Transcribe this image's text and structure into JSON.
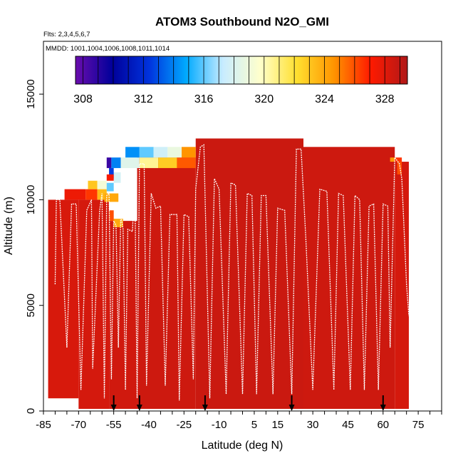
{
  "chart_data": {
    "type": "heatmap",
    "title": "ATOM3 Southbound N2O_GMI",
    "flights_label": "Flts: 2,3,4,5,6,7",
    "dates_label": "MMDD: 1001,1004,1006,1008,1011,1014",
    "xlabel": "Latitude (deg N)",
    "ylabel": "Altitude (m)",
    "xlim": [
      -85,
      85
    ],
    "ylim": [
      0,
      17500
    ],
    "x_ticks": [
      "-85",
      "-70",
      "-55",
      "-40",
      "-25",
      "-10",
      "5",
      "15",
      "30",
      "45",
      "60",
      "75"
    ],
    "y_ticks": [
      "0",
      "5000",
      "10000",
      "15000"
    ],
    "colorbar": {
      "min": 307.5,
      "max": 329.5,
      "ticks": [
        "308",
        "312",
        "316",
        "320",
        "324",
        "328"
      ],
      "colors": [
        "#6a0dad",
        "#00009a",
        "#0033dd",
        "#00aaff",
        "#c8ecff",
        "#ffffcc",
        "#ffe030",
        "#ff9500",
        "#ff1a00",
        "#b01818"
      ]
    },
    "grid": false,
    "legend": "colorbar-top-inside",
    "curtain_cells": [
      {
        "x0": -83,
        "x1": -70,
        "y0": 600,
        "y1": 10000,
        "v": 328.3
      },
      {
        "x0": -70,
        "x1": -57,
        "y0": 100,
        "y1": 10000,
        "v": 328.4
      },
      {
        "x0": -57,
        "x1": -45,
        "y0": 100,
        "y1": 9000,
        "v": 328.5
      },
      {
        "x0": -45,
        "x1": -20,
        "y0": 100,
        "y1": 12000,
        "v": 328.6
      },
      {
        "x0": -20,
        "x1": 26,
        "y0": 100,
        "y1": 12900,
        "v": 328.7
      },
      {
        "x0": 26,
        "x1": 65,
        "y0": 100,
        "y1": 12500,
        "v": 328.6
      },
      {
        "x0": 65,
        "x1": 71,
        "y0": 100,
        "y1": 11800,
        "v": 328.4
      },
      {
        "x0": -76,
        "x1": -67,
        "y0": 10000,
        "y1": 10500,
        "v": 327.6
      },
      {
        "x0": -67,
        "x1": -62,
        "y0": 10000,
        "y1": 10500,
        "v": 326.5
      },
      {
        "x0": -62,
        "x1": -58,
        "y0": 10000,
        "y1": 10500,
        "v": 323.4
      },
      {
        "x0": -66,
        "x1": -62,
        "y0": 10500,
        "y1": 10900,
        "v": 323.0
      },
      {
        "x0": -62,
        "x1": -58,
        "y0": 10500,
        "y1": 10900,
        "v": 319.2
      },
      {
        "x0": -58,
        "x1": -55,
        "y0": 10400,
        "y1": 10800,
        "v": 316.0
      },
      {
        "x0": -55,
        "x1": -52,
        "y0": 10800,
        "y1": 11300,
        "v": 317.8
      },
      {
        "x0": -57,
        "x1": -55,
        "y0": 11000,
        "y1": 11500,
        "v": 312.6
      },
      {
        "x0": -58,
        "x1": -56,
        "y0": 11500,
        "y1": 12000,
        "v": 308.6
      },
      {
        "x0": -56,
        "x1": -52,
        "y0": 11500,
        "y1": 12000,
        "v": 314.0
      },
      {
        "x0": -52,
        "x1": -44,
        "y0": 11500,
        "y1": 12000,
        "v": 318.3
      },
      {
        "x0": -44,
        "x1": -36,
        "y0": 11500,
        "y1": 12000,
        "v": 320.6
      },
      {
        "x0": -36,
        "x1": -28,
        "y0": 11500,
        "y1": 12000,
        "v": 322.8
      },
      {
        "x0": -28,
        "x1": -20,
        "y0": 11500,
        "y1": 12000,
        "v": 325.8
      },
      {
        "x0": -50,
        "x1": -44,
        "y0": 12000,
        "y1": 12500,
        "v": 314.3
      },
      {
        "x0": -44,
        "x1": -38,
        "y0": 12000,
        "y1": 12500,
        "v": 316.0
      },
      {
        "x0": -38,
        "x1": -32,
        "y0": 12000,
        "y1": 12500,
        "v": 317.6
      },
      {
        "x0": -32,
        "x1": -26,
        "y0": 12000,
        "y1": 12500,
        "v": 318.8
      },
      {
        "x0": -26,
        "x1": -20,
        "y0": 12000,
        "y1": 12500,
        "v": 324.6
      },
      {
        "x0": -59,
        "x1": -53,
        "y0": 9900,
        "y1": 10300,
        "v": 324.0
      },
      {
        "x0": -55,
        "x1": -51,
        "y0": 8700,
        "y1": 9100,
        "v": 323.9
      },
      {
        "x0": -57,
        "x1": -55,
        "y0": 9000,
        "y1": 9500,
        "v": 326.0
      },
      {
        "x0": -58,
        "x1": -55,
        "y0": 10900,
        "y1": 11200,
        "v": 327.3
      },
      {
        "x0": 63,
        "x1": 65,
        "y0": 11800,
        "y1": 12000,
        "v": 324.5
      },
      {
        "x0": 65,
        "x1": 68,
        "y0": 11800,
        "y1": 12000,
        "v": 326.5
      },
      {
        "x0": 66,
        "x1": 68,
        "y0": 11200,
        "y1": 11800,
        "v": 326.0
      }
    ],
    "flight_track": {
      "color": "#ffffff",
      "points": [
        [
          -80,
          6000
        ],
        [
          -79.5,
          10000
        ],
        [
          -78,
          10000
        ],
        [
          -75,
          3000
        ],
        [
          -73,
          9800
        ],
        [
          -71,
          9800
        ],
        [
          -69,
          1000
        ],
        [
          -66.5,
          9500
        ],
        [
          -64.5,
          10000
        ],
        [
          -64,
          2000
        ],
        [
          -61,
          9500
        ],
        [
          -60,
          10300
        ],
        [
          -59,
          600
        ],
        [
          -58,
          10200
        ],
        [
          -57,
          10300
        ],
        [
          -56,
          1500
        ],
        [
          -55,
          9000
        ],
        [
          -54,
          8800
        ],
        [
          -53,
          3000
        ],
        [
          -52,
          9300
        ],
        [
          -51,
          8600
        ],
        [
          -50,
          1000
        ],
        [
          -49,
          8600
        ],
        [
          -47,
          8500
        ],
        [
          -46,
          11200
        ],
        [
          -45,
          600
        ],
        [
          -44,
          11700
        ],
        [
          -42,
          11700
        ],
        [
          -41,
          1200
        ],
        [
          -39,
          10300
        ],
        [
          -37,
          9600
        ],
        [
          -35,
          9700
        ],
        [
          -33,
          1200
        ],
        [
          -31,
          9300
        ],
        [
          -28,
          9300
        ],
        [
          -27,
          500
        ],
        [
          -25,
          9300
        ],
        [
          -23,
          9200
        ],
        [
          -21,
          1500
        ],
        [
          -20,
          10500
        ],
        [
          -18,
          12500
        ],
        [
          -16.5,
          12600
        ],
        [
          -14,
          600
        ],
        [
          -12,
          11000
        ],
        [
          -10,
          10500
        ],
        [
          -7,
          800
        ],
        [
          -5,
          10800
        ],
        [
          -3,
          10700
        ],
        [
          0,
          800
        ],
        [
          2,
          10300
        ],
        [
          4,
          10200
        ],
        [
          6,
          800
        ],
        [
          8,
          10200
        ],
        [
          10,
          10200
        ],
        [
          13,
          800
        ],
        [
          15,
          9600
        ],
        [
          18,
          9500
        ],
        [
          21,
          800
        ],
        [
          23,
          12400
        ],
        [
          25,
          12400
        ],
        [
          27,
          8200
        ],
        [
          30,
          1000
        ],
        [
          33,
          10500
        ],
        [
          36,
          10400
        ],
        [
          39,
          1000
        ],
        [
          41,
          10300
        ],
        [
          43,
          10200
        ],
        [
          46,
          1000
        ],
        [
          48,
          10200
        ],
        [
          50,
          10000
        ],
        [
          52,
          1000
        ],
        [
          54,
          9700
        ],
        [
          56,
          9800
        ],
        [
          58,
          1000
        ],
        [
          60,
          9800
        ],
        [
          62,
          9700
        ],
        [
          63,
          3000
        ],
        [
          65,
          12000
        ],
        [
          67,
          11700
        ],
        [
          68,
          11000
        ],
        [
          70,
          6000
        ],
        [
          71,
          4500
        ]
      ]
    },
    "arrows": [
      {
        "x": -55,
        "color": "#000000"
      },
      {
        "x": -44,
        "color": "#000000"
      },
      {
        "x": -16,
        "color": "#000000"
      },
      {
        "x": 21,
        "color": "#000000"
      },
      {
        "x": 60,
        "color": "#000000"
      }
    ]
  }
}
